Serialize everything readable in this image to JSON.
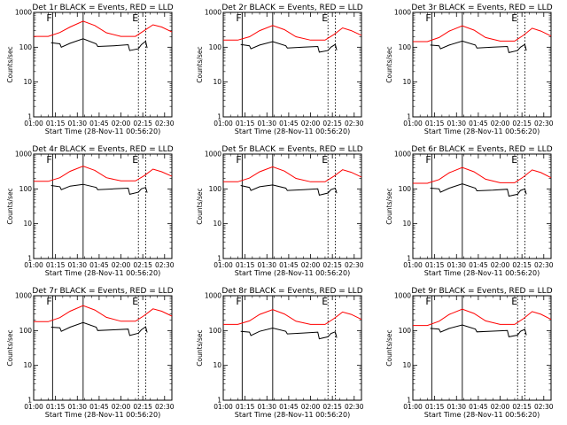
{
  "chart_data": {
    "type": "line",
    "layout": "3x3 grid of panels",
    "shared": {
      "xlabel": "Start Time (28-Nov-11 00:56:20)",
      "ylabel": "Counts/sec",
      "xlim": [
        "01:00",
        "02:35"
      ],
      "xticks": [
        "01:00",
        "01:15",
        "01:30",
        "01:45",
        "02:00",
        "02:15",
        "02:30"
      ],
      "yscale": "log",
      "ylim": [
        1,
        1000
      ],
      "yticks": [
        "1",
        "10",
        "100",
        "1000"
      ],
      "grid": false,
      "markers": [
        {
          "label": "F",
          "time": "01:13",
          "style": "solid"
        },
        {
          "label": "",
          "time": "01:34",
          "style": "solid"
        },
        {
          "label": "E",
          "time": "02:12",
          "style": "dotted"
        },
        {
          "label": "",
          "time": "02:17",
          "style": "dotted"
        }
      ],
      "series_colors": {
        "Events": "#000000",
        "LLD": "#ff0000"
      }
    },
    "panels": [
      {
        "title": "Det 1r BLACK = Events, RED = LLD",
        "events": [
          [
            "01:12",
            135
          ],
          [
            "01:18",
            125
          ],
          [
            "01:19",
            100
          ],
          [
            "01:25",
            130
          ],
          [
            "01:34",
            175
          ],
          [
            "01:43",
            125
          ],
          [
            "01:44",
            105
          ],
          [
            "01:55",
            110
          ],
          [
            "02:05",
            118
          ],
          [
            "02:06",
            80
          ],
          [
            "02:12",
            90
          ],
          [
            "02:14",
            118
          ],
          [
            "02:17",
            148
          ],
          [
            "02:18",
            95
          ]
        ],
        "lld": [
          [
            "01:00",
            205
          ],
          [
            "01:10",
            205
          ],
          [
            "01:18",
            265
          ],
          [
            "01:25",
            380
          ],
          [
            "01:34",
            560
          ],
          [
            "01:42",
            420
          ],
          [
            "01:50",
            260
          ],
          [
            "02:00",
            205
          ],
          [
            "02:10",
            205
          ],
          [
            "02:16",
            300
          ],
          [
            "02:22",
            440
          ],
          [
            "02:28",
            380
          ],
          [
            "02:35",
            275
          ]
        ]
      },
      {
        "title": "Det 2r BLACK = Events, RED = LLD",
        "events": [
          [
            "01:12",
            120
          ],
          [
            "01:18",
            110
          ],
          [
            "01:19",
            90
          ],
          [
            "01:25",
            115
          ],
          [
            "01:34",
            145
          ],
          [
            "01:43",
            110
          ],
          [
            "01:44",
            95
          ],
          [
            "01:55",
            100
          ],
          [
            "02:05",
            105
          ],
          [
            "02:06",
            72
          ],
          [
            "02:12",
            80
          ],
          [
            "02:14",
            100
          ],
          [
            "02:17",
            120
          ],
          [
            "02:18",
            82
          ]
        ],
        "lld": [
          [
            "01:00",
            160
          ],
          [
            "01:10",
            160
          ],
          [
            "01:18",
            200
          ],
          [
            "01:25",
            300
          ],
          [
            "01:34",
            420
          ],
          [
            "01:42",
            320
          ],
          [
            "01:50",
            200
          ],
          [
            "02:00",
            160
          ],
          [
            "02:10",
            160
          ],
          [
            "02:16",
            230
          ],
          [
            "02:22",
            360
          ],
          [
            "02:28",
            300
          ],
          [
            "02:35",
            220
          ]
        ]
      },
      {
        "title": "Det 3r BLACK = Events, RED = LLD",
        "events": [
          [
            "01:12",
            115
          ],
          [
            "01:18",
            110
          ],
          [
            "01:19",
            90
          ],
          [
            "01:25",
            115
          ],
          [
            "01:34",
            150
          ],
          [
            "01:43",
            115
          ],
          [
            "01:44",
            95
          ],
          [
            "01:55",
            100
          ],
          [
            "02:05",
            105
          ],
          [
            "02:06",
            70
          ],
          [
            "02:12",
            80
          ],
          [
            "02:14",
            100
          ],
          [
            "02:17",
            120
          ],
          [
            "02:18",
            80
          ]
        ],
        "lld": [
          [
            "01:00",
            145
          ],
          [
            "01:10",
            145
          ],
          [
            "01:18",
            190
          ],
          [
            "01:25",
            290
          ],
          [
            "01:34",
            410
          ],
          [
            "01:42",
            310
          ],
          [
            "01:50",
            190
          ],
          [
            "02:00",
            150
          ],
          [
            "02:10",
            150
          ],
          [
            "02:16",
            220
          ],
          [
            "02:22",
            350
          ],
          [
            "02:28",
            290
          ],
          [
            "02:35",
            210
          ]
        ]
      },
      {
        "title": "Det 4r BLACK = Events, RED = LLD",
        "events": [
          [
            "01:12",
            125
          ],
          [
            "01:18",
            115
          ],
          [
            "01:19",
            95
          ],
          [
            "01:25",
            120
          ],
          [
            "01:34",
            135
          ],
          [
            "01:43",
            110
          ],
          [
            "01:44",
            95
          ],
          [
            "01:55",
            100
          ],
          [
            "02:05",
            105
          ],
          [
            "02:06",
            70
          ],
          [
            "02:12",
            80
          ],
          [
            "02:14",
            100
          ],
          [
            "02:17",
            110
          ],
          [
            "02:18",
            78
          ]
        ],
        "lld": [
          [
            "01:00",
            165
          ],
          [
            "01:10",
            165
          ],
          [
            "01:18",
            210
          ],
          [
            "01:25",
            320
          ],
          [
            "01:34",
            450
          ],
          [
            "01:42",
            340
          ],
          [
            "01:50",
            210
          ],
          [
            "02:00",
            170
          ],
          [
            "02:10",
            170
          ],
          [
            "02:16",
            240
          ],
          [
            "02:22",
            370
          ],
          [
            "02:28",
            310
          ],
          [
            "02:35",
            230
          ]
        ]
      },
      {
        "title": "Det 5r BLACK = Events, RED = LLD",
        "events": [
          [
            "01:12",
            125
          ],
          [
            "01:18",
            110
          ],
          [
            "01:19",
            90
          ],
          [
            "01:25",
            115
          ],
          [
            "01:34",
            130
          ],
          [
            "01:43",
            105
          ],
          [
            "01:44",
            90
          ],
          [
            "01:55",
            95
          ],
          [
            "02:05",
            100
          ],
          [
            "02:06",
            66
          ],
          [
            "02:12",
            76
          ],
          [
            "02:14",
            95
          ],
          [
            "02:17",
            105
          ],
          [
            "02:18",
            75
          ]
        ],
        "lld": [
          [
            "01:00",
            160
          ],
          [
            "01:10",
            160
          ],
          [
            "01:18",
            205
          ],
          [
            "01:25",
            310
          ],
          [
            "01:34",
            430
          ],
          [
            "01:42",
            325
          ],
          [
            "01:50",
            200
          ],
          [
            "02:00",
            160
          ],
          [
            "02:10",
            160
          ],
          [
            "02:16",
            230
          ],
          [
            "02:22",
            355
          ],
          [
            "02:28",
            300
          ],
          [
            "02:35",
            220
          ]
        ]
      },
      {
        "title": "Det 6r BLACK = Events, RED = LLD",
        "events": [
          [
            "01:12",
            105
          ],
          [
            "01:18",
            100
          ],
          [
            "01:19",
            80
          ],
          [
            "01:25",
            105
          ],
          [
            "01:34",
            140
          ],
          [
            "01:43",
            105
          ],
          [
            "01:44",
            88
          ],
          [
            "01:55",
            92
          ],
          [
            "02:05",
            98
          ],
          [
            "02:06",
            62
          ],
          [
            "02:12",
            70
          ],
          [
            "02:14",
            90
          ],
          [
            "02:17",
            100
          ],
          [
            "02:18",
            70
          ]
        ],
        "lld": [
          [
            "01:00",
            145
          ],
          [
            "01:10",
            145
          ],
          [
            "01:18",
            185
          ],
          [
            "01:25",
            290
          ],
          [
            "01:34",
            410
          ],
          [
            "01:42",
            310
          ],
          [
            "01:50",
            190
          ],
          [
            "02:00",
            150
          ],
          [
            "02:10",
            150
          ],
          [
            "02:16",
            220
          ],
          [
            "02:22",
            350
          ],
          [
            "02:28",
            295
          ],
          [
            "02:35",
            210
          ]
        ]
      },
      {
        "title": "Det 7r BLACK = Events, RED = LLD",
        "events": [
          [
            "01:12",
            125
          ],
          [
            "01:18",
            120
          ],
          [
            "01:19",
            95
          ],
          [
            "01:25",
            125
          ],
          [
            "01:34",
            170
          ],
          [
            "01:43",
            125
          ],
          [
            "01:44",
            100
          ],
          [
            "01:55",
            105
          ],
          [
            "02:05",
            110
          ],
          [
            "02:06",
            72
          ],
          [
            "02:12",
            84
          ],
          [
            "02:14",
            105
          ],
          [
            "02:17",
            128
          ],
          [
            "02:18",
            88
          ]
        ],
        "lld": [
          [
            "01:00",
            180
          ],
          [
            "01:10",
            180
          ],
          [
            "01:18",
            235
          ],
          [
            "01:25",
            360
          ],
          [
            "01:34",
            520
          ],
          [
            "01:42",
            390
          ],
          [
            "01:50",
            240
          ],
          [
            "02:00",
            185
          ],
          [
            "02:10",
            185
          ],
          [
            "02:16",
            270
          ],
          [
            "02:22",
            420
          ],
          [
            "02:28",
            360
          ],
          [
            "02:35",
            260
          ]
        ]
      },
      {
        "title": "Det 8r BLACK = Events, RED = LLD",
        "events": [
          [
            "01:12",
            95
          ],
          [
            "01:18",
            90
          ],
          [
            "01:19",
            72
          ],
          [
            "01:25",
            95
          ],
          [
            "01:34",
            118
          ],
          [
            "01:43",
            95
          ],
          [
            "01:44",
            80
          ],
          [
            "01:55",
            85
          ],
          [
            "02:05",
            90
          ],
          [
            "02:06",
            58
          ],
          [
            "02:12",
            66
          ],
          [
            "02:14",
            82
          ],
          [
            "02:17",
            92
          ],
          [
            "02:18",
            62
          ]
        ],
        "lld": [
          [
            "01:00",
            150
          ],
          [
            "01:10",
            150
          ],
          [
            "01:18",
            190
          ],
          [
            "01:25",
            290
          ],
          [
            "01:34",
            400
          ],
          [
            "01:42",
            300
          ],
          [
            "01:50",
            185
          ],
          [
            "02:00",
            150
          ],
          [
            "02:10",
            150
          ],
          [
            "02:16",
            220
          ],
          [
            "02:22",
            340
          ],
          [
            "02:28",
            290
          ],
          [
            "02:35",
            210
          ]
        ]
      },
      {
        "title": "Det 9r BLACK = Events, RED = LLD",
        "events": [
          [
            "01:12",
            115
          ],
          [
            "01:18",
            110
          ],
          [
            "01:19",
            90
          ],
          [
            "01:25",
            115
          ],
          [
            "01:34",
            145
          ],
          [
            "01:43",
            110
          ],
          [
            "01:44",
            92
          ],
          [
            "01:55",
            96
          ],
          [
            "02:05",
            100
          ],
          [
            "02:06",
            66
          ],
          [
            "02:12",
            74
          ],
          [
            "02:14",
            95
          ],
          [
            "02:17",
            108
          ],
          [
            "02:18",
            74
          ]
        ],
        "lld": [
          [
            "01:00",
            140
          ],
          [
            "01:10",
            140
          ],
          [
            "01:18",
            185
          ],
          [
            "01:25",
            290
          ],
          [
            "01:34",
            410
          ],
          [
            "01:42",
            310
          ],
          [
            "01:50",
            190
          ],
          [
            "02:00",
            150
          ],
          [
            "02:10",
            150
          ],
          [
            "02:16",
            220
          ],
          [
            "02:22",
            350
          ],
          [
            "02:28",
            295
          ],
          [
            "02:35",
            210
          ]
        ]
      }
    ]
  }
}
